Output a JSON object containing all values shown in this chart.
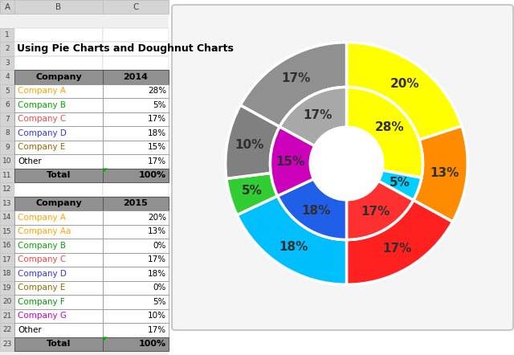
{
  "title": "Using Pie Charts and Doughnut Charts",
  "inner_values": [
    28,
    5,
    17,
    18,
    15,
    17
  ],
  "inner_pct": [
    "28%",
    "5%",
    "17%",
    "18%",
    "15%",
    "17%"
  ],
  "inner_colors": [
    "#FFFF00",
    "#00CFFF",
    "#FF3030",
    "#2060E8",
    "#CC00BB",
    "#A8A8A8"
  ],
  "outer_values": [
    20,
    13,
    17,
    18,
    5,
    10,
    17
  ],
  "outer_pct": [
    "20%",
    "13%",
    "17%",
    "18%",
    "5%",
    "10%",
    "17%"
  ],
  "outer_colors": [
    "#FFFF00",
    "#FF8C00",
    "#FF2020",
    "#00BFFF",
    "#32CD32",
    "#808080",
    "#909090"
  ],
  "start_angle": 90,
  "bg_color": "#FFFFFF",
  "label_color": "#2F2F2F",
  "label_fontsize": 11,
  "rows_2014": [
    [
      "Company A",
      "28%",
      "#FFA500"
    ],
    [
      "Company B",
      "5%",
      "#00AA00"
    ],
    [
      "Company C",
      "17%",
      "#FF4444"
    ],
    [
      "Company D",
      "18%",
      "#3333FF"
    ],
    [
      "Company E",
      "15%",
      "#996600"
    ],
    [
      "Other",
      "17%",
      "#000000"
    ]
  ],
  "rows_2015": [
    [
      "Company A",
      "20%",
      "#FFA500"
    ],
    [
      "Company Aa",
      "13%",
      "#FFA500"
    ],
    [
      "Company B",
      "0%",
      "#00AA00"
    ],
    [
      "Company C",
      "17%",
      "#FF4444"
    ],
    [
      "Company D",
      "18%",
      "#3333FF"
    ],
    [
      "Company E",
      "0%",
      "#996600"
    ],
    [
      "Company F",
      "5%",
      "#009900"
    ],
    [
      "Company G",
      "10%",
      "#CC00CC"
    ],
    [
      "Other",
      "17%",
      "#000000"
    ]
  ],
  "header_color": "#909090",
  "grid_color": "#888888",
  "row_number_color": "#AAAAAA",
  "spreadsheet_bg": "#EAEAEA"
}
